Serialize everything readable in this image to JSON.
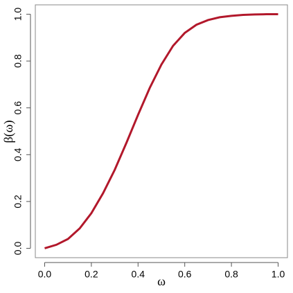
{
  "chart_data": {
    "type": "line",
    "x_label": "ω",
    "y_label": "β(ω)",
    "x": [
      0,
      0.05,
      0.1,
      0.15,
      0.2,
      0.25,
      0.3,
      0.35,
      0.4,
      0.45,
      0.5,
      0.55,
      0.6,
      0.65,
      0.7,
      0.75,
      0.8,
      0.85,
      0.9,
      0.95,
      1.0
    ],
    "series": [
      {
        "color": "#b2182b",
        "values": [
          0,
          0.015,
          0.04,
          0.085,
          0.15,
          0.235,
          0.335,
          0.45,
          0.57,
          0.685,
          0.785,
          0.865,
          0.92,
          0.955,
          0.975,
          0.987,
          0.993,
          0.997,
          0.999,
          1.0,
          1.0
        ]
      }
    ],
    "xlim": [
      -0.04,
      1.04
    ],
    "ylim": [
      -0.04,
      1.04
    ],
    "xticks": [
      {
        "value": 0,
        "label": "0.0"
      },
      {
        "value": 0.2,
        "label": "0.2"
      },
      {
        "value": 0.4,
        "label": "0.4"
      },
      {
        "value": 0.6,
        "label": "0.6"
      },
      {
        "value": 0.8,
        "label": "0.8"
      },
      {
        "value": 1,
        "label": "1.0"
      }
    ],
    "yticks": [
      {
        "value": 0,
        "label": "0.0"
      },
      {
        "value": 0.2,
        "label": "0.2"
      },
      {
        "value": 0.4,
        "label": "0.4"
      },
      {
        "value": 0.6,
        "label": "0.6"
      },
      {
        "value": 0.8,
        "label": "0.8"
      },
      {
        "value": 1,
        "label": "1.0"
      }
    ],
    "grid": false
  }
}
